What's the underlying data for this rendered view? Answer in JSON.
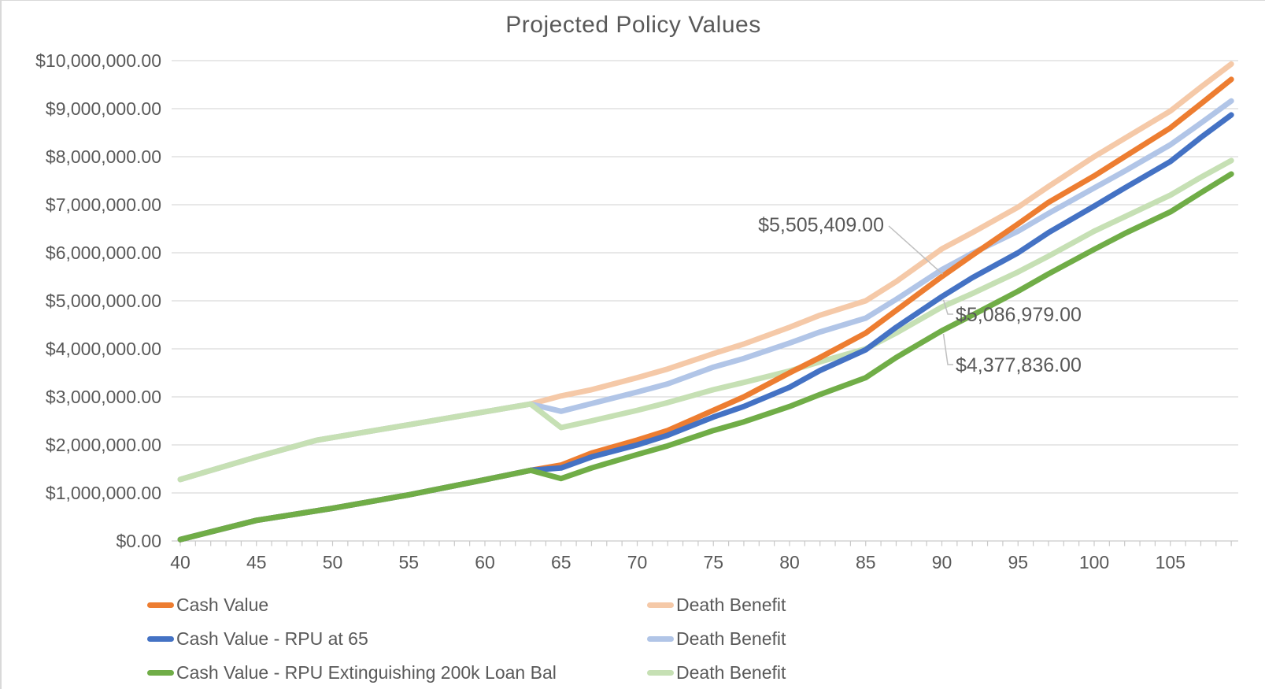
{
  "chart_data": {
    "type": "line",
    "title": "Projected Policy Values",
    "xlabel": "",
    "ylabel": "",
    "grid": "horizontal",
    "legend_position": "bottom",
    "x_axis": {
      "min": 40,
      "max": 109,
      "minor_tick_every": 1,
      "tick_ages": [
        40,
        45,
        50,
        55,
        60,
        65,
        70,
        75,
        80,
        85,
        90,
        95,
        100,
        105
      ],
      "tick_labels": [
        "40",
        "45",
        "50",
        "55",
        "60",
        "65",
        "70",
        "75",
        "80",
        "85",
        "90",
        "95",
        "100",
        "105"
      ]
    },
    "y_axis": {
      "min": 0,
      "max": 10000000,
      "step": 1000000,
      "tick_labels": [
        "$0.00",
        "$1,000,000.00",
        "$2,000,000.00",
        "$3,000,000.00",
        "$4,000,000.00",
        "$5,000,000.00",
        "$6,000,000.00",
        "$7,000,000.00",
        "$8,000,000.00",
        "$9,000,000.00",
        "$10,000,000.00"
      ]
    },
    "series": [
      {
        "name": "Cash Value",
        "color": "#ED7D31",
        "points": [
          [
            40,
            30000
          ],
          [
            45,
            430000
          ],
          [
            50,
            680000
          ],
          [
            55,
            960000
          ],
          [
            60,
            1275000
          ],
          [
            63,
            1470000
          ],
          [
            65,
            1580000
          ],
          [
            67,
            1830000
          ],
          [
            70,
            2100000
          ],
          [
            72,
            2300000
          ],
          [
            75,
            2720000
          ],
          [
            77,
            3000000
          ],
          [
            80,
            3500000
          ],
          [
            82,
            3820000
          ],
          [
            85,
            4330000
          ],
          [
            87,
            4800000
          ],
          [
            90,
            5505409
          ],
          [
            92,
            5950000
          ],
          [
            95,
            6600000
          ],
          [
            97,
            7050000
          ],
          [
            100,
            7600000
          ],
          [
            102,
            8000000
          ],
          [
            105,
            8600000
          ],
          [
            107,
            9100000
          ],
          [
            109,
            9610000
          ]
        ]
      },
      {
        "name": "Death Benefit",
        "color": "#F5C9A8",
        "points": [
          [
            40,
            1280000
          ],
          [
            45,
            1750000
          ],
          [
            49,
            2100000
          ],
          [
            55,
            2420000
          ],
          [
            60,
            2690000
          ],
          [
            63,
            2850000
          ],
          [
            65,
            3020000
          ],
          [
            67,
            3150000
          ],
          [
            70,
            3400000
          ],
          [
            72,
            3580000
          ],
          [
            75,
            3900000
          ],
          [
            77,
            4100000
          ],
          [
            80,
            4450000
          ],
          [
            82,
            4700000
          ],
          [
            85,
            5000000
          ],
          [
            87,
            5400000
          ],
          [
            90,
            6080000
          ],
          [
            92,
            6420000
          ],
          [
            95,
            6950000
          ],
          [
            97,
            7380000
          ],
          [
            100,
            8000000
          ],
          [
            102,
            8380000
          ],
          [
            105,
            8950000
          ],
          [
            107,
            9450000
          ],
          [
            109,
            9930000
          ]
        ]
      },
      {
        "name": "Cash Value - RPU at 65",
        "color": "#4472C4",
        "points": [
          [
            40,
            30000
          ],
          [
            45,
            430000
          ],
          [
            50,
            680000
          ],
          [
            55,
            960000
          ],
          [
            60,
            1275000
          ],
          [
            63,
            1470000
          ],
          [
            65,
            1520000
          ],
          [
            67,
            1750000
          ],
          [
            70,
            2000000
          ],
          [
            72,
            2200000
          ],
          [
            75,
            2580000
          ],
          [
            77,
            2800000
          ],
          [
            80,
            3200000
          ],
          [
            82,
            3550000
          ],
          [
            85,
            3980000
          ],
          [
            87,
            4450000
          ],
          [
            90,
            5086979
          ],
          [
            92,
            5480000
          ],
          [
            95,
            6000000
          ],
          [
            97,
            6420000
          ],
          [
            100,
            6970000
          ],
          [
            102,
            7350000
          ],
          [
            105,
            7900000
          ],
          [
            107,
            8400000
          ],
          [
            109,
            8870000
          ]
        ]
      },
      {
        "name": "Death Benefit",
        "color": "#B1C5E7",
        "points": [
          [
            40,
            1280000
          ],
          [
            45,
            1750000
          ],
          [
            49,
            2100000
          ],
          [
            55,
            2420000
          ],
          [
            60,
            2690000
          ],
          [
            63,
            2850000
          ],
          [
            65,
            2700000
          ],
          [
            67,
            2860000
          ],
          [
            70,
            3100000
          ],
          [
            72,
            3270000
          ],
          [
            75,
            3620000
          ],
          [
            77,
            3800000
          ],
          [
            80,
            4120000
          ],
          [
            82,
            4350000
          ],
          [
            85,
            4640000
          ],
          [
            87,
            5030000
          ],
          [
            90,
            5650000
          ],
          [
            92,
            5990000
          ],
          [
            95,
            6450000
          ],
          [
            97,
            6820000
          ],
          [
            100,
            7350000
          ],
          [
            102,
            7700000
          ],
          [
            105,
            8250000
          ],
          [
            107,
            8700000
          ],
          [
            109,
            9160000
          ]
        ]
      },
      {
        "name": "Cash Value - RPU Extinguishing 200k Loan Bal",
        "color": "#70AD47",
        "points": [
          [
            40,
            30000
          ],
          [
            45,
            430000
          ],
          [
            50,
            680000
          ],
          [
            55,
            960000
          ],
          [
            60,
            1275000
          ],
          [
            63,
            1470000
          ],
          [
            65,
            1300000
          ],
          [
            67,
            1520000
          ],
          [
            70,
            1800000
          ],
          [
            72,
            1980000
          ],
          [
            75,
            2300000
          ],
          [
            77,
            2480000
          ],
          [
            80,
            2800000
          ],
          [
            82,
            3050000
          ],
          [
            85,
            3400000
          ],
          [
            87,
            3820000
          ],
          [
            90,
            4377836
          ],
          [
            92,
            4700000
          ],
          [
            95,
            5200000
          ],
          [
            97,
            5560000
          ],
          [
            100,
            6070000
          ],
          [
            102,
            6400000
          ],
          [
            105,
            6850000
          ],
          [
            107,
            7250000
          ],
          [
            109,
            7640000
          ]
        ]
      },
      {
        "name": "Death Benefit",
        "color": "#C6E0B4",
        "points": [
          [
            40,
            1280000
          ],
          [
            45,
            1750000
          ],
          [
            49,
            2100000
          ],
          [
            55,
            2420000
          ],
          [
            60,
            2690000
          ],
          [
            63,
            2850000
          ],
          [
            65,
            2360000
          ],
          [
            67,
            2500000
          ],
          [
            70,
            2720000
          ],
          [
            72,
            2880000
          ],
          [
            75,
            3150000
          ],
          [
            77,
            3300000
          ],
          [
            80,
            3540000
          ],
          [
            82,
            3730000
          ],
          [
            85,
            4000000
          ],
          [
            87,
            4330000
          ],
          [
            90,
            4870000
          ],
          [
            92,
            5150000
          ],
          [
            95,
            5600000
          ],
          [
            97,
            5930000
          ],
          [
            100,
            6450000
          ],
          [
            102,
            6750000
          ],
          [
            105,
            7200000
          ],
          [
            107,
            7570000
          ],
          [
            109,
            7920000
          ]
        ]
      }
    ],
    "annotations": [
      {
        "text": "$5,505,409.00",
        "age": 90,
        "value": 5505409,
        "series_index": 0
      },
      {
        "text": "$5,086,979.00",
        "age": 90,
        "value": 5086979,
        "series_index": 2
      },
      {
        "text": "$4,377,836.00",
        "age": 90,
        "value": 4377836,
        "series_index": 4
      }
    ]
  },
  "legend": {
    "columns": [
      [
        {
          "label": "Cash Value",
          "color": "#ED7D31"
        },
        {
          "label": "Cash Value - RPU at 65",
          "color": "#4472C4"
        },
        {
          "label": "Cash Value - RPU Extinguishing 200k Loan Bal",
          "color": "#70AD47"
        }
      ],
      [
        {
          "label": "Death Benefit",
          "color": "#F5C9A8"
        },
        {
          "label": "Death Benefit",
          "color": "#B1C5E7"
        },
        {
          "label": "Death Benefit",
          "color": "#C6E0B4"
        }
      ]
    ]
  },
  "colors": {
    "text": "#595959",
    "gridline": "#D9D9D9",
    "axis": "#C9C9C9",
    "leader_line": "#BFBFBF",
    "background": "#FFFFFF"
  }
}
